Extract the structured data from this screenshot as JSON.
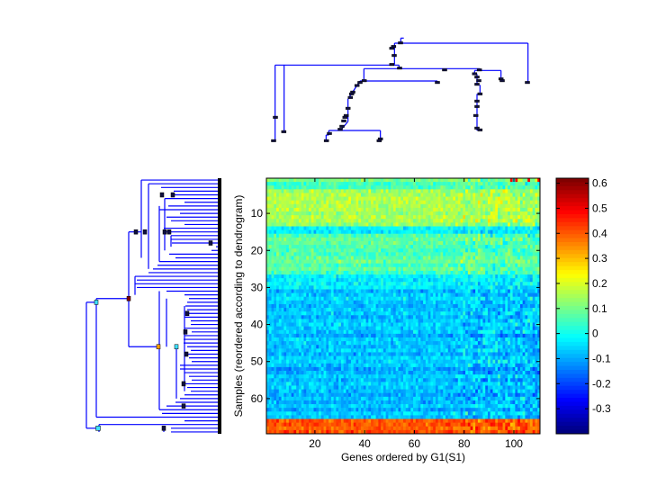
{
  "chart_data": {
    "type": "heatmap",
    "title": "",
    "xlabel": "Genes ordered by G1(S1)",
    "ylabel": "Samples (reordered according to dendrogram)",
    "n_genes": 110,
    "n_samples": 69,
    "x_ticks": [
      20,
      40,
      60,
      80,
      100
    ],
    "y_ticks": [
      10,
      20,
      30,
      40,
      50,
      60
    ],
    "colorbar": {
      "range": [
        -0.4,
        0.62
      ],
      "ticks": [
        0.6,
        0.5,
        0.4,
        0.3,
        0.2,
        0.1,
        0,
        -0.1,
        -0.2,
        -0.3
      ],
      "colormap": "jet"
    },
    "row_band_means": [
      {
        "rows": [
          1,
          1
        ],
        "mean": 0.1
      },
      {
        "rows": [
          2,
          3
        ],
        "mean": 0.03
      },
      {
        "rows": [
          4,
          13
        ],
        "mean": 0.15
      },
      {
        "rows": [
          14,
          15
        ],
        "mean": -0.02
      },
      {
        "rows": [
          16,
          26
        ],
        "mean": 0.07
      },
      {
        "rows": [
          27,
          30
        ],
        "mean": -0.04
      },
      {
        "rows": [
          31,
          65
        ],
        "mean": -0.08
      },
      {
        "rows": [
          66,
          69
        ],
        "mean": 0.42
      }
    ],
    "dendrograms": [
      "samples (left)",
      "genes (top)"
    ]
  }
}
